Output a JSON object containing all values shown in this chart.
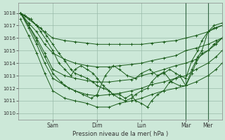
{
  "bg_color": "#cce8d8",
  "grid_color": "#99bbaa",
  "line_color": "#1a5c1a",
  "marker_color": "#1a5c1a",
  "xlabel_text": "Pression niveau de la mer( hPa )",
  "ylim": [
    1009.5,
    1018.8
  ],
  "yticks": [
    1010,
    1011,
    1012,
    1013,
    1014,
    1015,
    1016,
    1017,
    1018
  ],
  "xtick_labels": [
    "Sam",
    "Dim",
    "Lun",
    "Mar",
    "Mer"
  ],
  "xtick_positions": [
    0.16,
    0.38,
    0.6,
    0.82,
    0.93
  ],
  "xlim": [
    -0.01,
    1.0
  ],
  "vlines": [
    0.82,
    0.93
  ],
  "series": [
    {
      "xs": [
        0.0,
        0.04,
        0.08,
        0.12,
        0.16,
        0.22,
        0.27,
        0.33,
        0.38,
        0.44,
        0.49,
        0.55,
        0.6,
        0.65,
        0.71,
        0.77,
        0.82,
        0.87,
        0.93,
        0.97,
        1.0
      ],
      "ys": [
        1018.0,
        1017.5,
        1017.0,
        1016.5,
        1016.0,
        1015.8,
        1015.7,
        1015.6,
        1015.5,
        1015.5,
        1015.5,
        1015.5,
        1015.5,
        1015.6,
        1015.7,
        1015.8,
        1016.0,
        1016.2,
        1016.5,
        1016.8,
        1017.0
      ]
    },
    {
      "xs": [
        0.0,
        0.04,
        0.08,
        0.12,
        0.16,
        0.22,
        0.27,
        0.33,
        0.38,
        0.44,
        0.49,
        0.55,
        0.6,
        0.65,
        0.71,
        0.77,
        0.82,
        0.87,
        0.93,
        0.97,
        1.0
      ],
      "ys": [
        1018.0,
        1017.2,
        1016.5,
        1015.5,
        1014.8,
        1014.3,
        1014.0,
        1013.8,
        1013.7,
        1013.7,
        1013.8,
        1013.9,
        1014.0,
        1014.2,
        1014.4,
        1014.6,
        1015.0,
        1015.2,
        1015.5,
        1015.8,
        1016.0
      ]
    },
    {
      "xs": [
        0.0,
        0.04,
        0.08,
        0.12,
        0.16,
        0.22,
        0.27,
        0.33,
        0.38,
        0.44,
        0.49,
        0.55,
        0.6,
        0.65,
        0.71,
        0.77,
        0.82,
        0.87,
        0.93,
        0.97,
        1.0
      ],
      "ys": [
        1018.0,
        1017.0,
        1016.0,
        1014.8,
        1013.5,
        1013.0,
        1012.8,
        1012.6,
        1012.5,
        1012.5,
        1012.6,
        1012.7,
        1013.0,
        1013.2,
        1013.5,
        1013.8,
        1014.0,
        1014.3,
        1015.0,
        1015.5,
        1016.0
      ]
    },
    {
      "xs": [
        0.0,
        0.04,
        0.08,
        0.12,
        0.16,
        0.22,
        0.27,
        0.33,
        0.38,
        0.44,
        0.49,
        0.55,
        0.6,
        0.65,
        0.71,
        0.77,
        0.82,
        0.87,
        0.93,
        0.97,
        1.0
      ],
      "ys": [
        1018.0,
        1016.8,
        1015.5,
        1014.0,
        1012.8,
        1012.2,
        1011.8,
        1011.5,
        1011.4,
        1011.5,
        1011.6,
        1011.8,
        1012.0,
        1012.3,
        1012.5,
        1012.8,
        1013.0,
        1013.5,
        1014.0,
        1014.5,
        1015.0
      ]
    },
    {
      "xs": [
        0.0,
        0.04,
        0.08,
        0.12,
        0.16,
        0.22,
        0.27,
        0.33,
        0.38,
        0.44,
        0.49,
        0.55,
        0.6,
        0.65,
        0.71,
        0.77,
        0.82,
        0.87,
        0.93,
        0.97,
        1.0
      ],
      "ys": [
        1017.5,
        1016.2,
        1014.8,
        1013.2,
        1011.8,
        1011.2,
        1011.0,
        1010.8,
        1010.5,
        1010.5,
        1010.8,
        1011.0,
        1011.2,
        1011.5,
        1011.8,
        1012.0,
        1012.2,
        1012.5,
        1013.0,
        1013.5,
        1014.0
      ]
    },
    {
      "xs": [
        0.0,
        0.04,
        0.08,
        0.12,
        0.16,
        0.2,
        0.24,
        0.27,
        0.31,
        0.35,
        0.38,
        0.42,
        0.46,
        0.49,
        0.53,
        0.57,
        0.6,
        0.64,
        0.68,
        0.71,
        0.75,
        0.79,
        0.82,
        0.85,
        0.88,
        0.9,
        0.93,
        0.96,
        1.0
      ],
      "ys": [
        1018.0,
        1017.0,
        1015.8,
        1014.5,
        1013.2,
        1012.5,
        1012.0,
        1011.8,
        1011.5,
        1011.2,
        1011.5,
        1013.0,
        1013.8,
        1013.5,
        1013.0,
        1012.8,
        1013.2,
        1013.5,
        1013.0,
        1013.3,
        1012.5,
        1012.2,
        1012.2,
        1013.5,
        1014.5,
        1015.0,
        1016.5,
        1016.8,
        1017.0
      ]
    },
    {
      "xs": [
        0.0,
        0.02,
        0.05,
        0.08,
        0.1,
        0.13,
        0.16,
        0.19,
        0.22,
        0.25,
        0.27,
        0.3,
        0.33,
        0.36,
        0.38,
        0.41,
        0.44,
        0.46,
        0.49,
        0.52,
        0.55,
        0.57,
        0.6,
        0.63,
        0.65,
        0.68,
        0.71,
        0.74,
        0.77,
        0.79,
        0.82,
        0.85,
        0.87,
        0.9,
        0.93,
        0.96,
        1.0
      ],
      "ys": [
        1018.0,
        1017.8,
        1017.5,
        1017.0,
        1016.5,
        1015.8,
        1015.0,
        1014.0,
        1013.5,
        1013.0,
        1013.5,
        1013.8,
        1013.5,
        1013.2,
        1012.8,
        1012.2,
        1011.8,
        1011.5,
        1011.5,
        1011.2,
        1011.5,
        1011.0,
        1010.8,
        1010.5,
        1011.0,
        1011.5,
        1011.8,
        1012.5,
        1012.8,
        1013.0,
        1012.2,
        1013.2,
        1014.0,
        1014.8,
        1015.0,
        1015.5,
        1016.0
      ]
    },
    {
      "xs": [
        0.0,
        0.02,
        0.05,
        0.08,
        0.1,
        0.13,
        0.16,
        0.19,
        0.22,
        0.25,
        0.27,
        0.3,
        0.33,
        0.36,
        0.38,
        0.41,
        0.44,
        0.46,
        0.49,
        0.52,
        0.55,
        0.57,
        0.6,
        0.63,
        0.65,
        0.68,
        0.71,
        0.74,
        0.77,
        0.79,
        0.82,
        0.85,
        0.88,
        0.9,
        0.93,
        0.96,
        1.0
      ],
      "ys": [
        1018.0,
        1017.8,
        1017.5,
        1017.0,
        1016.8,
        1016.2,
        1015.5,
        1014.8,
        1014.2,
        1013.5,
        1013.2,
        1013.0,
        1012.8,
        1012.5,
        1012.2,
        1012.0,
        1011.8,
        1011.5,
        1011.2,
        1011.0,
        1011.2,
        1011.5,
        1011.8,
        1012.0,
        1012.5,
        1013.0,
        1013.2,
        1013.5,
        1013.2,
        1013.0,
        1012.8,
        1014.2,
        1015.0,
        1015.8,
        1016.5,
        1017.0,
        1017.2
      ]
    }
  ]
}
